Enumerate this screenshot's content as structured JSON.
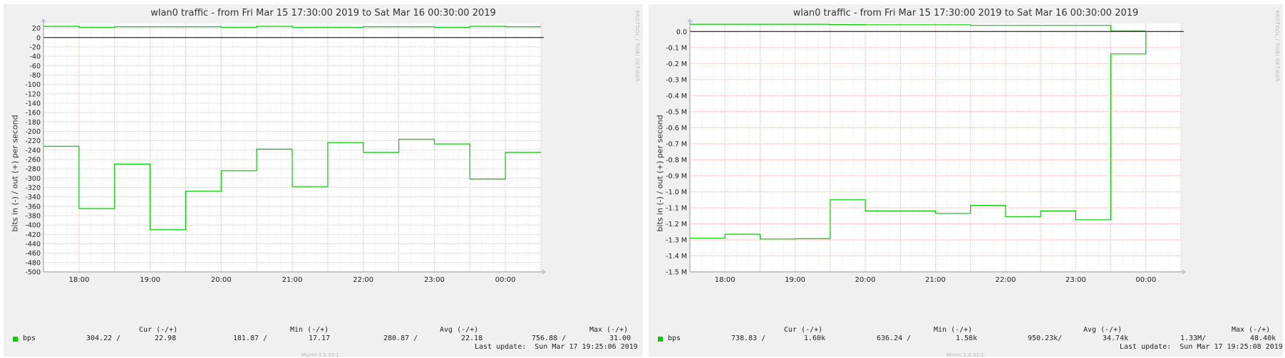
{
  "chart_data": [
    {
      "type": "line",
      "title": "wlan0 traffic - from Fri Mar 15 17:30:00 2019 to Sat Mar 16 00:30:00 2019",
      "ylabel": "bits in (-) / out (+) per second",
      "watermark": "RRDTOOL / TOBI OETIKER",
      "footer": "Munin 2.0.33-1",
      "x_ticks": [
        "18:00",
        "19:00",
        "20:00",
        "21:00",
        "22:00",
        "23:00",
        "00:00"
      ],
      "x_range_hours": [
        17.5,
        24.5
      ],
      "y_ticks": [
        20,
        0,
        -20,
        -40,
        -60,
        -80,
        -100,
        -120,
        -140,
        -160,
        -180,
        -200,
        -220,
        -240,
        -260,
        -280,
        -300,
        -320,
        -340,
        -360,
        -380,
        -400,
        -420,
        -440,
        -460,
        -480,
        -500
      ],
      "y_tick_labels": [
        "20",
        "0",
        "-20",
        "-40",
        "-60",
        "-80",
        "-100",
        "-120",
        "-140",
        "-160",
        "-180",
        "-200",
        "-220",
        "-240",
        "-260",
        "-280",
        "-300",
        "-320",
        "-340",
        "-360",
        "-380",
        "-400",
        "-420",
        "-440",
        "-460",
        "-480",
        "-500"
      ],
      "ylim": [
        -500,
        30
      ],
      "grid": true,
      "series": [
        {
          "name": "bps",
          "color": "#00cc00",
          "x": [
            17.5,
            18.0,
            18.5,
            19.0,
            19.5,
            20.0,
            20.5,
            21.0,
            21.5,
            22.0,
            22.5,
            23.0,
            23.5,
            24.0,
            24.5
          ],
          "out": [
            24,
            22,
            23,
            23,
            23,
            22,
            24,
            22,
            22,
            23,
            23,
            22,
            24,
            23,
            23
          ],
          "in": [
            -232,
            -365,
            -270,
            -410,
            -328,
            -284,
            -238,
            -318,
            -224,
            -245,
            -217,
            -227,
            -302,
            -245,
            -245
          ]
        }
      ],
      "legend": {
        "headers": [
          "Cur (-/+)",
          "Min (-/+)",
          "Avg (-/+)",
          "Max (-/+)"
        ],
        "label": "bps",
        "cur_in": "304.22 /",
        "cur_out": "22.98",
        "min_in": "181.87 /",
        "min_out": "17.17",
        "avg_in": "280.87 /",
        "avg_out": "22.18",
        "max_in": "756.88 /",
        "max_out": "31.00",
        "last_update": "Last update:  Sun Mar 17 19:25:06 2019"
      }
    },
    {
      "type": "line",
      "title": "wlan0 traffic - from Fri Mar 15 17:30:00 2019 to Sat Mar 16 00:30:00 2019",
      "ylabel": "bits in (-) / out (+) per second",
      "watermark": "RRDTOOL / TOBI OETIKER",
      "footer": "Munin 2.0.33-1",
      "x_ticks": [
        "18:00",
        "19:00",
        "20:00",
        "21:00",
        "22:00",
        "23:00",
        "00:00"
      ],
      "x_range_hours": [
        17.5,
        24.5
      ],
      "y_ticks": [
        0,
        -0.1,
        -0.2,
        -0.3,
        -0.4,
        -0.5,
        -0.6,
        -0.7,
        -0.8,
        -0.9,
        -1.0,
        -1.1,
        -1.2,
        -1.3,
        -1.4,
        -1.5
      ],
      "y_tick_labels": [
        "0.0",
        "-0.1 M",
        "-0.2 M",
        "-0.3 M",
        "-0.4 M",
        "-0.5 M",
        "-0.6 M",
        "-0.7 M",
        "-0.8 M",
        "-0.9 M",
        "-1.0 M",
        "-1.1 M",
        "-1.2 M",
        "-1.3 M",
        "-1.4 M",
        "-1.5 M"
      ],
      "ylim": [
        -1.5,
        0.05
      ],
      "grid": true,
      "series": [
        {
          "name": "bps",
          "color": "#00cc00",
          "x": [
            17.5,
            18.0,
            18.5,
            19.0,
            19.5,
            20.0,
            20.5,
            21.0,
            21.5,
            22.0,
            22.5,
            23.0,
            23.5,
            24.0,
            24.5
          ],
          "out": [
            0.045,
            0.045,
            0.045,
            0.045,
            0.043,
            0.042,
            0.042,
            0.042,
            0.038,
            0.038,
            0.038,
            0.038,
            0.004,
            0.004,
            0.004
          ],
          "in": [
            -1.29,
            -1.265,
            -1.295,
            -1.293,
            -1.05,
            -1.12,
            -1.12,
            -1.135,
            -1.085,
            -1.155,
            -1.12,
            -1.175,
            -0.14,
            -0.14,
            -0.14
          ],
          "end_hour": 24.0
        }
      ],
      "legend": {
        "headers": [
          "Cur (-/+)",
          "Min (-/+)",
          "Avg (-/+)",
          "Max (-/+)"
        ],
        "label": "bps",
        "cur_in": "738.83 /",
        "cur_out": "1.60k",
        "min_in": "636.24 /",
        "min_out": "1.58k",
        "avg_in": "950.23k/",
        "avg_out": "34.74k",
        "max_in": "1.33M/",
        "max_out": "48.40k",
        "last_update": "Last update:  Sun Mar 17 19:25:08 2019"
      }
    }
  ]
}
